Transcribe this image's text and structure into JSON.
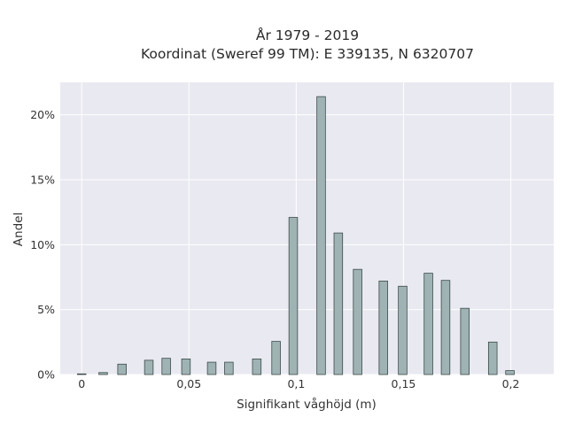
{
  "chart_data": {
    "type": "bar",
    "title_lines": [
      "År 1979 - 2019",
      "Koordinat (Sweref 99 TM): E 339135, N 6320707"
    ],
    "xlabel": "Signifikant våghöjd (m)",
    "ylabel": "Andel",
    "xlim": [
      -0.01,
      0.22
    ],
    "ylim": [
      0,
      22.5
    ],
    "x_ticks": [
      {
        "value": 0,
        "label": "0"
      },
      {
        "value": 0.05,
        "label": "0,05"
      },
      {
        "value": 0.1,
        "label": "0,1"
      },
      {
        "value": 0.15,
        "label": "0,15"
      },
      {
        "value": 0.2,
        "label": "0,2"
      }
    ],
    "y_ticks": [
      {
        "value": 0,
        "label": "0%"
      },
      {
        "value": 5,
        "label": "5%"
      },
      {
        "value": 10,
        "label": "10%"
      },
      {
        "value": 15,
        "label": "15%"
      },
      {
        "value": 20,
        "label": "20%"
      }
    ],
    "bar_width": 0.004,
    "bar_color": "#9fb3b4",
    "bar_edge_color": "#3c4a4a",
    "plot_bg_color": "#e9e9f1",
    "grid": true,
    "x": [
      0.0,
      0.01,
      0.0188,
      0.0313,
      0.0394,
      0.0486,
      0.0606,
      0.0686,
      0.0816,
      0.0906,
      0.0986,
      0.1116,
      0.1196,
      0.1286,
      0.1406,
      0.1496,
      0.1616,
      0.1696,
      0.1786,
      0.1916,
      0.1996
    ],
    "values": [
      0.05,
      0.15,
      0.8,
      1.1,
      1.25,
      1.2,
      0.95,
      0.95,
      1.2,
      2.55,
      12.1,
      21.4,
      10.9,
      8.1,
      7.2,
      6.8,
      7.8,
      7.25,
      5.1,
      2.5,
      0.3
    ]
  }
}
